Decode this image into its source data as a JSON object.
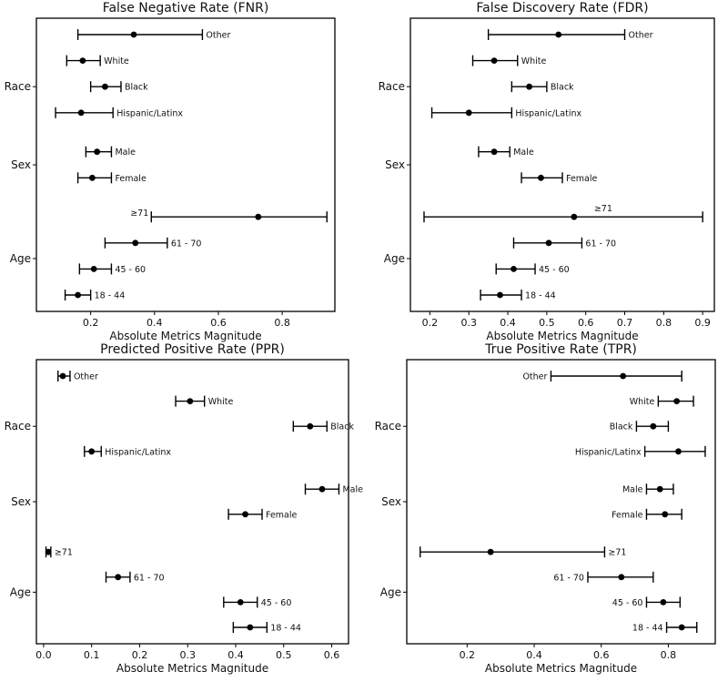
{
  "chart_data": [
    {
      "type": "scatter",
      "title": "False Negative Rate (FNR)",
      "xlabel": "Absolute Metrics Magnitude",
      "xlim": [
        0.03,
        0.965
      ],
      "xticks": [
        "0.2",
        "0.4",
        "0.6",
        "0.8"
      ],
      "groups": [
        "Race",
        "Sex",
        "Age"
      ],
      "points": [
        {
          "label": "Other",
          "value": 0.335,
          "low": 0.16,
          "high": 0.55,
          "slot": 0
        },
        {
          "label": "White",
          "value": 0.175,
          "low": 0.125,
          "high": 0.23,
          "slot": 1
        },
        {
          "label": "Black",
          "value": 0.245,
          "low": 0.2,
          "high": 0.295,
          "slot": 2
        },
        {
          "label": "Hispanic/Latinx",
          "value": 0.17,
          "low": 0.09,
          "high": 0.27,
          "slot": 3
        },
        {
          "label": "Male",
          "value": 0.22,
          "low": 0.185,
          "high": 0.265,
          "slot": 4.5
        },
        {
          "label": "Female",
          "value": 0.205,
          "low": 0.16,
          "high": 0.265,
          "slot": 5.5
        },
        {
          "label": "≥71",
          "value": 0.725,
          "low": 0.39,
          "high": 0.94,
          "slot": 7
        },
        {
          "label": "61 - 70",
          "value": 0.34,
          "low": 0.245,
          "high": 0.44,
          "slot": 8
        },
        {
          "label": "45 - 60",
          "value": 0.21,
          "low": 0.165,
          "high": 0.265,
          "slot": 9
        },
        {
          "label": "18 - 44",
          "value": 0.16,
          "low": 0.12,
          "high": 0.2,
          "slot": 10
        }
      ]
    },
    {
      "type": "scatter",
      "title": "False Discovery Rate (FDR)",
      "xlabel": "Absolute Metrics Magnitude",
      "xlim": [
        0.15,
        0.93
      ],
      "xticks": [
        "0.2",
        "0.3",
        "0.4",
        "0.5",
        "0.6",
        "0.7",
        "0.8",
        "0.9"
      ],
      "groups": [
        "Race",
        "Sex",
        "Age"
      ],
      "points": [
        {
          "label": "Other",
          "value": 0.53,
          "low": 0.35,
          "high": 0.7,
          "slot": 0
        },
        {
          "label": "White",
          "value": 0.365,
          "low": 0.31,
          "high": 0.425,
          "slot": 1
        },
        {
          "label": "Black",
          "value": 0.455,
          "low": 0.41,
          "high": 0.5,
          "slot": 2
        },
        {
          "label": "Hispanic/Latinx",
          "value": 0.3,
          "low": 0.205,
          "high": 0.41,
          "slot": 3
        },
        {
          "label": "Male",
          "value": 0.365,
          "low": 0.325,
          "high": 0.405,
          "slot": 4.5
        },
        {
          "label": "Female",
          "value": 0.485,
          "low": 0.435,
          "high": 0.54,
          "slot": 5.5
        },
        {
          "label": "≥71",
          "value": 0.57,
          "low": 0.185,
          "high": 0.9,
          "slot": 7
        },
        {
          "label": "61 - 70",
          "value": 0.505,
          "low": 0.415,
          "high": 0.59,
          "slot": 8
        },
        {
          "label": "45 - 60",
          "value": 0.415,
          "low": 0.37,
          "high": 0.47,
          "slot": 9
        },
        {
          "label": "18 - 44",
          "value": 0.38,
          "low": 0.33,
          "high": 0.435,
          "slot": 10
        }
      ]
    },
    {
      "type": "scatter",
      "title": "Predicted Positive Rate (PPR)",
      "xlabel": "Absolute Metrics Magnitude",
      "xlim": [
        -0.015,
        0.635
      ],
      "xticks": [
        "0.0",
        "0.1",
        "0.2",
        "0.3",
        "0.4",
        "0.5",
        "0.6"
      ],
      "groups": [
        "Race",
        "Sex",
        "Age"
      ],
      "points": [
        {
          "label": "Other",
          "value": 0.04,
          "low": 0.03,
          "high": 0.055,
          "slot": 0
        },
        {
          "label": "White",
          "value": 0.305,
          "low": 0.275,
          "high": 0.335,
          "slot": 1
        },
        {
          "label": "Black",
          "value": 0.555,
          "low": 0.52,
          "high": 0.59,
          "slot": 2
        },
        {
          "label": "Hispanic/Latinx",
          "value": 0.1,
          "low": 0.085,
          "high": 0.12,
          "slot": 3
        },
        {
          "label": "Male",
          "value": 0.58,
          "low": 0.545,
          "high": 0.615,
          "slot": 4.5
        },
        {
          "label": "Female",
          "value": 0.42,
          "low": 0.385,
          "high": 0.455,
          "slot": 5.5
        },
        {
          "label": "≥71",
          "value": 0.01,
          "low": 0.005,
          "high": 0.015,
          "slot": 7
        },
        {
          "label": "61 - 70",
          "value": 0.155,
          "low": 0.13,
          "high": 0.18,
          "slot": 8
        },
        {
          "label": "45 - 60",
          "value": 0.41,
          "low": 0.375,
          "high": 0.445,
          "slot": 9
        },
        {
          "label": "18 - 44",
          "value": 0.43,
          "low": 0.395,
          "high": 0.465,
          "slot": 10
        }
      ]
    },
    {
      "type": "scatter",
      "title": "True Positive Rate (TPR)",
      "xlabel": "Absolute Metrics Magnitude",
      "xlim": [
        0.02,
        0.94
      ],
      "xticks": [
        "0.2",
        "0.4",
        "0.6",
        "0.8"
      ],
      "groups": [
        "Race",
        "Sex",
        "Age"
      ],
      "points": [
        {
          "label": "Other",
          "value": 0.665,
          "low": 0.45,
          "high": 0.84,
          "slot": 0,
          "labelSide": "left"
        },
        {
          "label": "White",
          "value": 0.825,
          "low": 0.77,
          "high": 0.875,
          "slot": 1,
          "labelSide": "left"
        },
        {
          "label": "Black",
          "value": 0.755,
          "low": 0.705,
          "high": 0.8,
          "slot": 2,
          "labelSide": "left"
        },
        {
          "label": "Hispanic/Latinx",
          "value": 0.83,
          "low": 0.73,
          "high": 0.91,
          "slot": 3,
          "labelSide": "left"
        },
        {
          "label": "Male",
          "value": 0.775,
          "low": 0.735,
          "high": 0.815,
          "slot": 4.5,
          "labelSide": "left"
        },
        {
          "label": "Female",
          "value": 0.79,
          "low": 0.735,
          "high": 0.84,
          "slot": 5.5,
          "labelSide": "left"
        },
        {
          "label": "≥71",
          "value": 0.27,
          "low": 0.06,
          "high": 0.61,
          "slot": 7,
          "labelSide": "right"
        },
        {
          "label": "61 - 70",
          "value": 0.66,
          "low": 0.56,
          "high": 0.755,
          "slot": 8,
          "labelSide": "left"
        },
        {
          "label": "45 - 60",
          "value": 0.785,
          "low": 0.735,
          "high": 0.835,
          "slot": 9,
          "labelSide": "left"
        },
        {
          "label": "18 - 44",
          "value": 0.84,
          "low": 0.795,
          "high": 0.885,
          "slot": 10,
          "labelSide": "left"
        }
      ]
    }
  ]
}
